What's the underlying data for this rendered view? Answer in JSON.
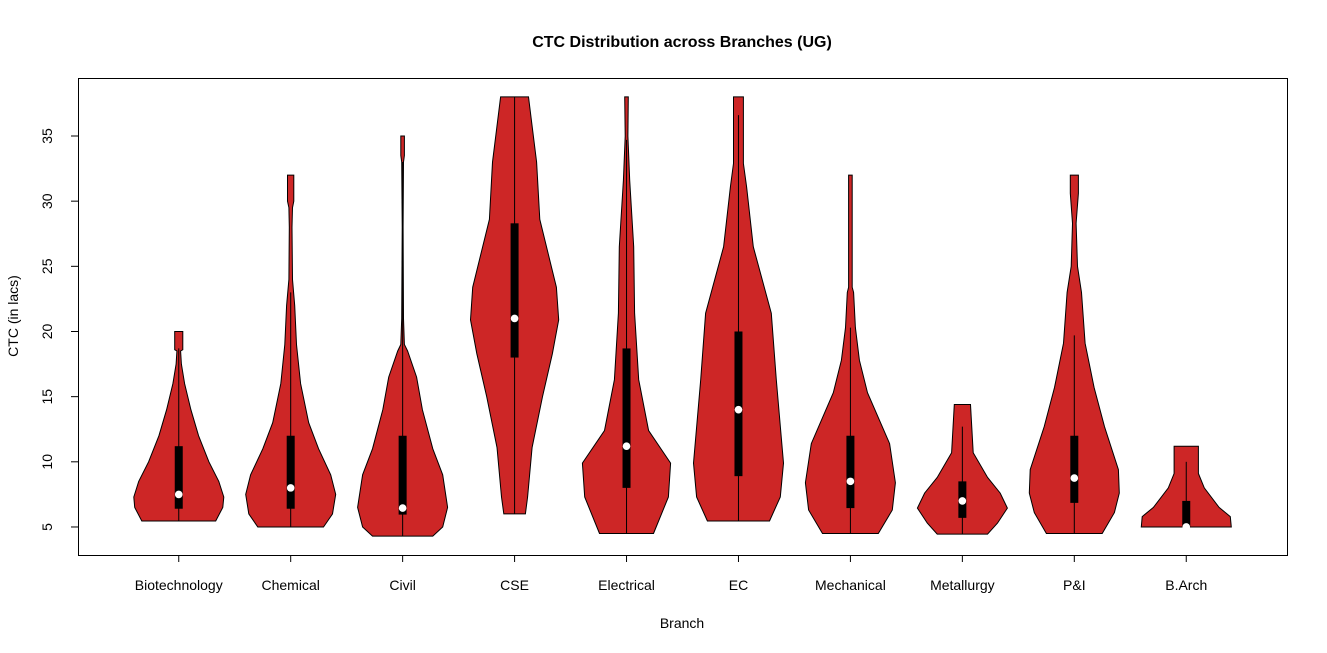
{
  "chart_data": {
    "type": "violin",
    "title": "CTC Distribution across Branches (UG)",
    "xlabel": "Branch",
    "ylabel": "CTC (in lacs)",
    "ylim": [
      2.85,
      39.45
    ],
    "yticks": [
      5,
      10,
      15,
      20,
      25,
      30,
      35
    ],
    "grid": false,
    "fill_color": "#CD2626",
    "categories": [
      "Biotechnology",
      "Chemical",
      "Civil",
      "CSE",
      "Electrical",
      "EC",
      "Mechanical",
      "Metallurgy",
      "P&I",
      "B.Arch"
    ],
    "series": [
      {
        "category": "Biotechnology",
        "min": 5.46,
        "q1": 6.4,
        "median": 7.5,
        "q3": 11.2,
        "whisker_low": 5.46,
        "whisker_high": 18.7,
        "max": 20,
        "density": [
          [
            5.46,
            0.82
          ],
          [
            6.5,
            0.98
          ],
          [
            7.3,
            1
          ],
          [
            8.5,
            0.89
          ],
          [
            10,
            0.67
          ],
          [
            12,
            0.44
          ],
          [
            14,
            0.27
          ],
          [
            16,
            0.13
          ],
          [
            17.5,
            0.06
          ],
          [
            18.5,
            0.04
          ],
          [
            18.6,
            0.09
          ],
          [
            20,
            0.09
          ]
        ]
      },
      {
        "category": "Chemical",
        "min": 5,
        "q1": 6.4,
        "median": 8.0,
        "q3": 12.0,
        "whisker_low": 5,
        "whisker_high": 23,
        "max": 32,
        "density": [
          [
            5,
            0.73
          ],
          [
            6,
            0.93
          ],
          [
            7.5,
            1
          ],
          [
            9,
            0.89
          ],
          [
            11,
            0.62
          ],
          [
            13,
            0.4
          ],
          [
            16,
            0.22
          ],
          [
            19,
            0.13
          ],
          [
            22,
            0.09
          ],
          [
            24,
            0.04
          ],
          [
            28,
            0.03
          ],
          [
            29.5,
            0.04
          ],
          [
            30,
            0.07
          ],
          [
            32,
            0.07
          ]
        ]
      },
      {
        "category": "Civil",
        "min": 4.3,
        "q1": 5.95,
        "median": 6.45,
        "q3": 12.0,
        "whisker_low": 4.3,
        "whisker_high": 33,
        "max": 35,
        "density": [
          [
            4.3,
            0.67
          ],
          [
            5,
            0.89
          ],
          [
            6.5,
            1
          ],
          [
            9,
            0.89
          ],
          [
            11,
            0.67
          ],
          [
            14,
            0.44
          ],
          [
            16.5,
            0.31
          ],
          [
            18.5,
            0.11
          ],
          [
            19,
            0.04
          ],
          [
            21,
            0.02
          ],
          [
            28,
            0.01
          ],
          [
            33,
            0.02
          ],
          [
            33.5,
            0.04
          ],
          [
            35,
            0.04
          ]
        ]
      },
      {
        "category": "CSE",
        "min": 6,
        "q1": 18.0,
        "median": 21.0,
        "q3": 28.3,
        "whisker_low": 6,
        "whisker_high": 38,
        "max": 38,
        "density": [
          [
            6,
            0.24
          ],
          [
            7.3,
            0.29
          ],
          [
            11.1,
            0.39
          ],
          [
            15,
            0.62
          ],
          [
            18.3,
            0.84
          ],
          [
            20.9,
            0.98
          ],
          [
            23.4,
            0.93
          ],
          [
            28.6,
            0.56
          ],
          [
            33,
            0.49
          ],
          [
            38,
            0.31
          ]
        ]
      },
      {
        "category": "Electrical",
        "min": 4.5,
        "q1": 8.0,
        "median": 11.2,
        "q3": 18.7,
        "whisker_low": 4.5,
        "whisker_high": 34.7,
        "max": 38,
        "density": [
          [
            4.5,
            0.6
          ],
          [
            7.3,
            0.93
          ],
          [
            9.9,
            0.98
          ],
          [
            12.4,
            0.49
          ],
          [
            16.3,
            0.27
          ],
          [
            21.4,
            0.18
          ],
          [
            26.5,
            0.16
          ],
          [
            31.6,
            0.07
          ],
          [
            35,
            0.03
          ],
          [
            38,
            0.04
          ]
        ]
      },
      {
        "category": "EC",
        "min": 5.46,
        "q1": 8.9,
        "median": 14.0,
        "q3": 20.0,
        "whisker_low": 5.46,
        "whisker_high": 36.6,
        "max": 38,
        "density": [
          [
            5.46,
            0.69
          ],
          [
            7.3,
            0.93
          ],
          [
            9.9,
            1
          ],
          [
            16.3,
            0.84
          ],
          [
            21.4,
            0.73
          ],
          [
            26.5,
            0.33
          ],
          [
            31.1,
            0.18
          ],
          [
            32.9,
            0.11
          ],
          [
            38,
            0.11
          ]
        ]
      },
      {
        "category": "Mechanical",
        "min": 4.5,
        "q1": 6.45,
        "median": 8.5,
        "q3": 12.0,
        "whisker_low": 4.5,
        "whisker_high": 20.3,
        "max": 32,
        "density": [
          [
            4.5,
            0.62
          ],
          [
            6.3,
            0.93
          ],
          [
            8.4,
            1
          ],
          [
            11.4,
            0.87
          ],
          [
            15.3,
            0.38
          ],
          [
            17.8,
            0.2
          ],
          [
            20.3,
            0.11
          ],
          [
            23,
            0.07
          ],
          [
            23.4,
            0.04
          ],
          [
            32,
            0.04
          ]
        ]
      },
      {
        "category": "Metallurgy",
        "min": 4.45,
        "q1": 5.7,
        "median": 7.0,
        "q3": 8.5,
        "whisker_low": 4.45,
        "whisker_high": 12.7,
        "max": 14.4,
        "density": [
          [
            4.45,
            0.56
          ],
          [
            5.3,
            0.78
          ],
          [
            6.45,
            1
          ],
          [
            7.6,
            0.84
          ],
          [
            8.8,
            0.56
          ],
          [
            10.7,
            0.24
          ],
          [
            14.4,
            0.18
          ]
        ]
      },
      {
        "category": "P&I",
        "min": 4.5,
        "q1": 6.85,
        "median": 8.75,
        "q3": 12.0,
        "whisker_low": 4.5,
        "whisker_high": 19.7,
        "max": 32,
        "density": [
          [
            4.5,
            0.62
          ],
          [
            6.1,
            0.89
          ],
          [
            7.6,
            1
          ],
          [
            9.4,
            0.98
          ],
          [
            12.7,
            0.67
          ],
          [
            15.7,
            0.44
          ],
          [
            19.1,
            0.24
          ],
          [
            23,
            0.16
          ],
          [
            25,
            0.07
          ],
          [
            28.3,
            0.04
          ],
          [
            30.6,
            0.09
          ],
          [
            32,
            0.09
          ]
        ]
      },
      {
        "category": "B.Arch",
        "min": 5,
        "q1": 5.0,
        "median": 5.0,
        "q3": 7.0,
        "whisker_low": 5,
        "whisker_high": 10.0,
        "max": 11.2,
        "density": [
          [
            5,
            1
          ],
          [
            5.8,
            0.98
          ],
          [
            6.5,
            0.73
          ],
          [
            8,
            0.4
          ],
          [
            9.1,
            0.27
          ],
          [
            11.2,
            0.27
          ]
        ]
      }
    ]
  }
}
